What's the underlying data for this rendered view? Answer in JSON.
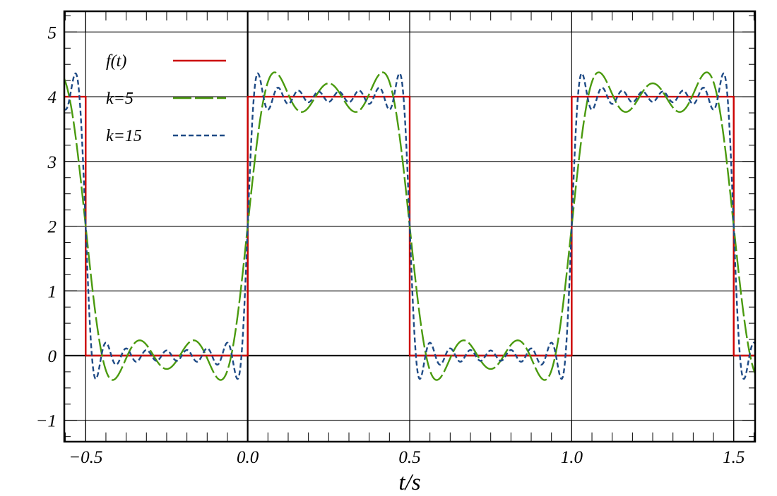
{
  "chart_data": {
    "type": "line",
    "title": "",
    "xlabel": "t/s",
    "ylabel": "",
    "xlim": [
      -0.566,
      1.566
    ],
    "ylim": [
      -1.33,
      5.32
    ],
    "xticks": [
      -0.5,
      0.0,
      0.5,
      1.0,
      1.5
    ],
    "xtick_labels": [
      "−0.5",
      "0.0",
      "0.5",
      "1.0",
      "1.5"
    ],
    "yticks": [
      -1,
      0,
      1,
      2,
      3,
      4,
      5
    ],
    "ytick_labels": [
      "−1",
      "0",
      "1",
      "2",
      "3",
      "4",
      "5"
    ],
    "x_minor_step": 0.0625,
    "y_minor_step": 0.25,
    "grid": true,
    "legend_position": "top-left",
    "square_wave": {
      "amplitude": 4,
      "period": 1,
      "duty_high_interval": [
        0,
        0.5
      ]
    },
    "series": [
      {
        "name": "f(t)",
        "color": "#cc0000",
        "style": "solid",
        "x": [
          -0.566,
          -0.5,
          -0.5,
          0.0,
          0.0,
          0.5,
          0.5,
          1.0,
          1.0,
          1.5,
          1.5,
          1.566
        ],
        "y": [
          4,
          4,
          0,
          0,
          4,
          4,
          0,
          0,
          4,
          4,
          0,
          0
        ]
      },
      {
        "name": "k=5",
        "color": "#4a9a0e",
        "style": "long-dash",
        "fourier_harmonics": 5
      },
      {
        "name": "k=15",
        "color": "#1f4b86",
        "style": "short-dash",
        "fourier_harmonics": 15
      }
    ]
  }
}
